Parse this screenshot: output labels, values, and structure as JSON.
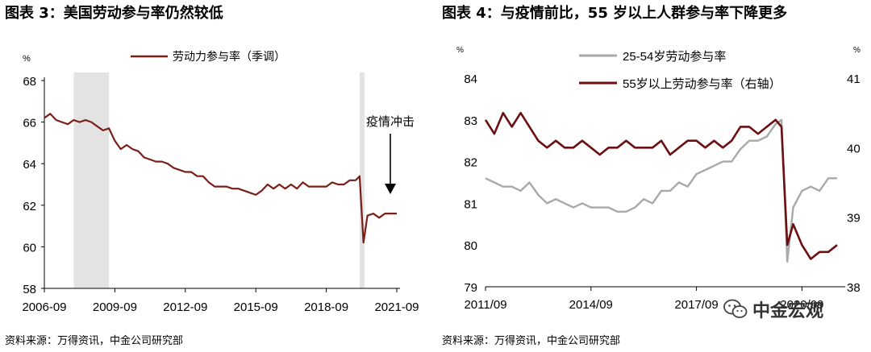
{
  "charts": {
    "left": {
      "title": "图表 3：美国劳动参与率仍然较低",
      "source": "资料来源：万得资讯，中金公司研究部"
    },
    "right": {
      "title": "图表 4：与疫情前比，55 岁以上人群参与率下降更多",
      "source": "资料来源：万得资讯，中金公司研究部"
    }
  },
  "watermark": {
    "text": "中金宏观",
    "icon": "wechat-icon"
  },
  "colors": {
    "maroon": "#7a1f17",
    "maroon_dark": "#6b0f12",
    "gray_series": "#a9a9a9",
    "shade": "#e3e3e3"
  },
  "chart_data": [
    {
      "type": "line",
      "title": "图表 3：美国劳动参与率仍然较低",
      "ylabel": "%",
      "ylim": [
        58,
        68
      ],
      "yticks": [
        "58",
        "60",
        "62",
        "64",
        "66",
        "68"
      ],
      "xlim": [
        "2006-09",
        "2021-09"
      ],
      "xticks": [
        "2006-09",
        "2009-09",
        "2012-09",
        "2015-09",
        "2018-09",
        "2021-09"
      ],
      "legend": "top-center",
      "annotation": "疫情冲击",
      "shaded_periods": [
        [
          "2007-12",
          "2009-06"
        ],
        [
          "2020-02",
          "2020-04"
        ]
      ],
      "series": [
        {
          "name": "劳动力参与率（季调）",
          "color": "#7a1f17",
          "x": [
            "2006-09",
            "2006-12",
            "2007-03",
            "2007-06",
            "2007-09",
            "2007-12",
            "2008-03",
            "2008-06",
            "2008-09",
            "2008-12",
            "2009-03",
            "2009-06",
            "2009-09",
            "2009-12",
            "2010-03",
            "2010-06",
            "2010-09",
            "2010-12",
            "2011-03",
            "2011-06",
            "2011-09",
            "2011-12",
            "2012-03",
            "2012-06",
            "2012-09",
            "2012-12",
            "2013-03",
            "2013-06",
            "2013-09",
            "2013-12",
            "2014-03",
            "2014-06",
            "2014-09",
            "2014-12",
            "2015-03",
            "2015-06",
            "2015-09",
            "2015-12",
            "2016-03",
            "2016-06",
            "2016-09",
            "2016-12",
            "2017-03",
            "2017-06",
            "2017-09",
            "2017-12",
            "2018-03",
            "2018-06",
            "2018-09",
            "2018-12",
            "2019-03",
            "2019-06",
            "2019-09",
            "2019-12",
            "2020-02",
            "2020-04",
            "2020-06",
            "2020-09",
            "2020-12",
            "2021-03",
            "2021-06",
            "2021-09"
          ],
          "values": [
            66.2,
            66.4,
            66.1,
            66.0,
            65.9,
            66.1,
            66.0,
            66.1,
            66.0,
            65.8,
            65.6,
            65.7,
            65.1,
            64.7,
            64.9,
            64.7,
            64.6,
            64.3,
            64.2,
            64.1,
            64.1,
            64.0,
            63.8,
            63.7,
            63.6,
            63.6,
            63.4,
            63.4,
            63.1,
            62.9,
            62.9,
            62.9,
            62.8,
            62.8,
            62.7,
            62.6,
            62.5,
            62.7,
            63.0,
            62.8,
            63.0,
            62.8,
            63.0,
            62.8,
            63.1,
            62.9,
            62.9,
            62.9,
            62.9,
            63.1,
            63.0,
            63.0,
            63.2,
            63.2,
            63.4,
            60.2,
            61.5,
            61.6,
            61.4,
            61.6,
            61.6,
            61.6
          ]
        }
      ]
    },
    {
      "type": "line",
      "title": "图表 4：与疫情前比，55 岁以上人群参与率下降更多",
      "ylabel": "%",
      "ylim": [
        79,
        84
      ],
      "yticks": [
        "79",
        "80",
        "81",
        "82",
        "83",
        "84"
      ],
      "y2label": "%",
      "y2lim": [
        38,
        41
      ],
      "y2ticks": [
        "38",
        "39",
        "40",
        "41"
      ],
      "xlim": [
        "2011/09",
        "2021/09"
      ],
      "xticks": [
        "2011/09",
        "2014/09",
        "2017/09",
        "2020/09"
      ],
      "legend": "top-left",
      "series": [
        {
          "name": "25-54岁劳动参与率",
          "color": "#a9a9a9",
          "axis": "left",
          "x": [
            "2011/09",
            "2011/12",
            "2012/03",
            "2012/06",
            "2012/09",
            "2012/12",
            "2013/03",
            "2013/06",
            "2013/09",
            "2013/12",
            "2014/03",
            "2014/06",
            "2014/09",
            "2014/12",
            "2015/03",
            "2015/06",
            "2015/09",
            "2015/12",
            "2016/03",
            "2016/06",
            "2016/09",
            "2016/12",
            "2017/03",
            "2017/06",
            "2017/09",
            "2017/12",
            "2018/03",
            "2018/06",
            "2018/09",
            "2018/12",
            "2019/03",
            "2019/06",
            "2019/09",
            "2019/12",
            "2020/02",
            "2020/04",
            "2020/06",
            "2020/09",
            "2020/12",
            "2021/03",
            "2021/06",
            "2021/09"
          ],
          "values": [
            81.6,
            81.5,
            81.4,
            81.4,
            81.3,
            81.5,
            81.2,
            81.0,
            81.1,
            81.0,
            80.9,
            81.0,
            80.9,
            80.9,
            80.9,
            80.8,
            80.8,
            80.9,
            81.1,
            81.0,
            81.3,
            81.3,
            81.5,
            81.4,
            81.7,
            81.8,
            81.9,
            82.0,
            82.0,
            82.3,
            82.5,
            82.5,
            82.6,
            82.9,
            83.0,
            79.6,
            80.9,
            81.3,
            81.4,
            81.3,
            81.6,
            81.6
          ]
        },
        {
          "name": "55岁以上劳动参与率（右轴）",
          "color": "#6b0f12",
          "axis": "right",
          "x": [
            "2011/09",
            "2011/12",
            "2012/03",
            "2012/06",
            "2012/09",
            "2012/12",
            "2013/03",
            "2013/06",
            "2013/09",
            "2013/12",
            "2014/03",
            "2014/06",
            "2014/09",
            "2014/12",
            "2015/03",
            "2015/06",
            "2015/09",
            "2015/12",
            "2016/03",
            "2016/06",
            "2016/09",
            "2016/12",
            "2017/03",
            "2017/06",
            "2017/09",
            "2017/12",
            "2018/03",
            "2018/06",
            "2018/09",
            "2018/12",
            "2019/03",
            "2019/06",
            "2019/09",
            "2019/12",
            "2020/02",
            "2020/04",
            "2020/06",
            "2020/09",
            "2020/12",
            "2021/03",
            "2021/06",
            "2021/09"
          ],
          "values": [
            40.4,
            40.2,
            40.5,
            40.3,
            40.5,
            40.3,
            40.1,
            40.0,
            40.1,
            40.0,
            40.0,
            40.1,
            40.0,
            39.9,
            40.0,
            40.0,
            40.1,
            40.0,
            40.0,
            40.0,
            40.1,
            39.9,
            40.0,
            40.1,
            40.1,
            40.0,
            40.1,
            40.0,
            40.1,
            40.3,
            40.3,
            40.2,
            40.3,
            40.4,
            40.3,
            38.6,
            38.9,
            38.6,
            38.4,
            38.5,
            38.5,
            38.6
          ]
        }
      ]
    }
  ]
}
